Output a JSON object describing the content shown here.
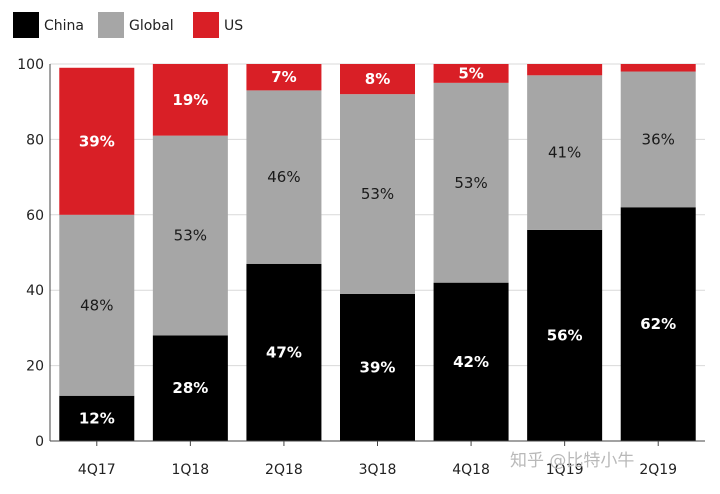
{
  "chart_data": {
    "type": "bar",
    "stacked": true,
    "percent_stacked": true,
    "categories": [
      "4Q17",
      "1Q18",
      "2Q18",
      "3Q18",
      "4Q18",
      "1Q19",
      "2Q19"
    ],
    "series": [
      {
        "name": "China",
        "color": "#000000",
        "values": [
          12,
          28,
          47,
          39,
          42,
          56,
          62
        ],
        "labels": [
          "12%",
          "28%",
          "47%",
          "39%",
          "42%",
          "56%",
          "62%"
        ]
      },
      {
        "name": "Global",
        "color": "#a6a6a6",
        "values": [
          48,
          53,
          46,
          53,
          53,
          41,
          36
        ],
        "labels": [
          "48%",
          "53%",
          "46%",
          "53%",
          "53%",
          "41%",
          "36%"
        ]
      },
      {
        "name": "US",
        "color": "#d91f26",
        "values": [
          39,
          19,
          7,
          8,
          5,
          3,
          2
        ],
        "labels": [
          "39%",
          "19%",
          "7%",
          "8%",
          "5%",
          "",
          ""
        ]
      }
    ],
    "ylim": [
      0,
      100
    ],
    "yticks": [
      0,
      20,
      40,
      60,
      80,
      100
    ],
    "legend": "top-left",
    "grid": true
  },
  "watermark": "知乎 @比特小牛"
}
